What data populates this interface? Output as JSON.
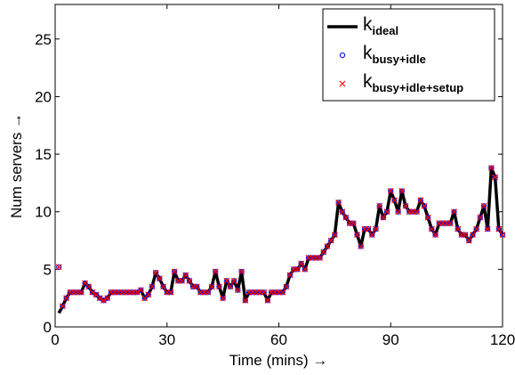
{
  "chart_data": {
    "type": "line",
    "xlabel": "Time (mins) →",
    "ylabel": "Num servers →",
    "xlim": [
      0,
      120
    ],
    "xticks": [
      0,
      30,
      60,
      90,
      120
    ],
    "ylim": [
      0,
      28
    ],
    "yticks": [
      0,
      5,
      10,
      15,
      20,
      25
    ],
    "grid": false,
    "legend": "top-right",
    "x": [
      1,
      2,
      3,
      4,
      5,
      6,
      7,
      8,
      9,
      10,
      11,
      12,
      13,
      14,
      15,
      16,
      17,
      18,
      19,
      20,
      21,
      22,
      23,
      24,
      25,
      26,
      27,
      28,
      29,
      30,
      31,
      32,
      33,
      34,
      35,
      36,
      37,
      38,
      39,
      40,
      41,
      42,
      43,
      44,
      45,
      46,
      47,
      48,
      49,
      50,
      51,
      52,
      53,
      54,
      55,
      56,
      57,
      58,
      59,
      60,
      61,
      62,
      63,
      64,
      65,
      66,
      67,
      68,
      69,
      70,
      71,
      72,
      73,
      74,
      75,
      76,
      77,
      78,
      79,
      80,
      81,
      82,
      83,
      84,
      85,
      86,
      87,
      88,
      89,
      90,
      91,
      92,
      93,
      94,
      95,
      96,
      97,
      98,
      99,
      100,
      101,
      102,
      103,
      104,
      105,
      106,
      107,
      108,
      109,
      110,
      111,
      112,
      113,
      114,
      115,
      116,
      117,
      118,
      119,
      120
    ],
    "series": [
      {
        "name": "k",
        "subscript": "ideal",
        "color": "#000000",
        "marker": "line",
        "values": [
          1.2,
          1.8,
          2.5,
          3,
          3,
          3,
          3,
          3.8,
          3.5,
          3,
          2.8,
          2.5,
          2.3,
          2.5,
          3,
          3,
          3,
          3,
          3,
          3,
          3,
          3,
          3.2,
          2.5,
          2.8,
          3.5,
          4.7,
          4.2,
          3.5,
          3,
          3,
          4.8,
          4,
          4,
          4.5,
          4,
          3.5,
          3.5,
          3,
          3,
          3,
          3.5,
          4.8,
          3.5,
          2.5,
          4,
          3.5,
          4,
          3.2,
          4.8,
          2.3,
          3,
          3,
          3,
          3,
          3,
          2.3,
          3,
          3,
          3,
          3,
          3.5,
          4.5,
          5,
          5,
          5.5,
          5,
          6,
          6,
          6,
          6,
          6.5,
          7,
          7.5,
          8,
          10.8,
          10,
          9.5,
          9,
          9,
          8,
          7,
          8.5,
          8.5,
          8,
          8.5,
          10.5,
          9.5,
          10,
          11.8,
          11,
          10,
          11.8,
          10.5,
          10,
          10,
          10,
          11,
          10.5,
          9.5,
          8.5,
          8,
          9,
          9,
          9,
          9,
          10,
          8.5,
          8,
          8,
          7.5,
          8,
          8.5,
          9.5,
          10.5,
          8.5,
          13.8,
          13,
          8.5,
          8
        ]
      },
      {
        "name": "k",
        "subscript": "busy+idle",
        "color": "#0000ff",
        "marker": "o",
        "values": [
          5.2,
          1.8,
          2.5,
          3,
          3,
          3,
          3,
          3.8,
          3.5,
          3,
          2.8,
          2.5,
          2.3,
          2.5,
          3,
          3,
          3,
          3,
          3,
          3,
          3,
          3,
          3.2,
          2.5,
          2.8,
          3.5,
          4.7,
          4.2,
          3.5,
          3,
          3,
          4.8,
          4,
          4,
          4.5,
          4,
          3.5,
          3.5,
          3,
          3,
          3,
          3.5,
          4.8,
          3.5,
          2.5,
          4,
          3.5,
          4,
          3.2,
          4.8,
          2.3,
          3,
          3,
          3,
          3,
          3,
          2.3,
          3,
          3,
          3,
          3,
          3.5,
          4.5,
          5,
          5,
          5.5,
          5,
          6,
          6,
          6,
          6,
          6.5,
          7,
          7.5,
          8,
          10.8,
          10,
          9.5,
          9,
          9,
          8,
          7,
          8.5,
          8.5,
          8,
          8.5,
          10.5,
          9.5,
          10,
          11.8,
          11,
          10,
          11.8,
          10.5,
          10,
          10,
          10,
          11,
          10.5,
          9.5,
          8.5,
          8,
          9,
          9,
          9,
          9,
          10,
          8.5,
          8,
          8,
          7.5,
          8,
          8.5,
          9.5,
          10.5,
          8.5,
          13.8,
          13,
          8.5,
          8
        ]
      },
      {
        "name": "k",
        "subscript": "busy+idle+setup",
        "color": "#ff0000",
        "marker": "x",
        "values": [
          5.2,
          1.8,
          2.5,
          3,
          3,
          3,
          3,
          3.8,
          3.5,
          3,
          2.8,
          2.5,
          2.3,
          2.5,
          3,
          3,
          3,
          3,
          3,
          3,
          3,
          3,
          3.2,
          2.5,
          2.8,
          3.5,
          4.7,
          4.2,
          3.5,
          3,
          3,
          4.8,
          4,
          4,
          4.5,
          4,
          3.5,
          3.5,
          3,
          3,
          3,
          3.5,
          4.8,
          3.5,
          2.5,
          4,
          3.5,
          4,
          3.2,
          4.8,
          2.3,
          3,
          3,
          3,
          3,
          3,
          2.3,
          3,
          3,
          3,
          3,
          3.5,
          4.5,
          5,
          5,
          5.5,
          5,
          6,
          6,
          6,
          6,
          6.5,
          7,
          7.5,
          8,
          10.8,
          10,
          9.5,
          9,
          9,
          8,
          7,
          8.5,
          8.5,
          8,
          8.5,
          10.5,
          9.5,
          10,
          11.8,
          11,
          10,
          11.8,
          10.5,
          10,
          10,
          10,
          11,
          10.5,
          9.5,
          8.5,
          8,
          9,
          9,
          9,
          9,
          10,
          8.5,
          8,
          8,
          7.5,
          8,
          8.5,
          9.5,
          10.5,
          8.5,
          13.8,
          13,
          8.5,
          8
        ]
      }
    ]
  }
}
